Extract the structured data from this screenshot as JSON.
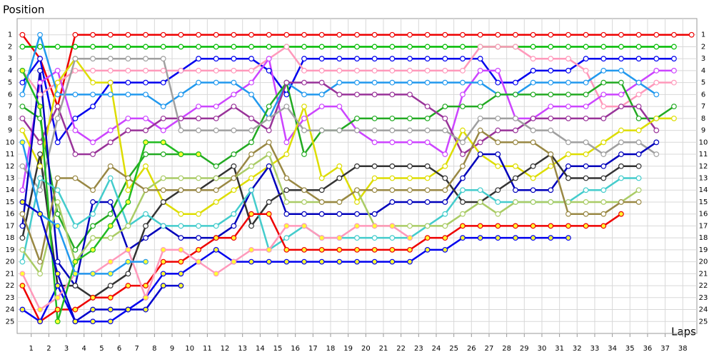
{
  "chart_data": {
    "type": "line",
    "y_label": "Position",
    "x_label": "Laps",
    "x": [
      0,
      1,
      2,
      3,
      4,
      5,
      6,
      7,
      8,
      9,
      10,
      11,
      12,
      13,
      14,
      15,
      16,
      17,
      18,
      19,
      20,
      21,
      22,
      23,
      24,
      25,
      26,
      27,
      28,
      29,
      30,
      31,
      32,
      33,
      34,
      35,
      36,
      37,
      38
    ],
    "xlim": [
      -0.3,
      38.3
    ],
    "xticks": [
      {
        "value": 0.5,
        "label": "1"
      },
      {
        "value": 1.5,
        "label": "2"
      },
      {
        "value": 2.5,
        "label": "3"
      },
      {
        "value": 3.5,
        "label": "4"
      },
      {
        "value": 4.5,
        "label": "5"
      },
      {
        "value": 5.5,
        "label": "6"
      },
      {
        "value": 6.5,
        "label": "7"
      },
      {
        "value": 7.5,
        "label": "8"
      },
      {
        "value": 8.5,
        "label": "9"
      },
      {
        "value": 9.5,
        "label": "10"
      },
      {
        "value": 10.5,
        "label": "11"
      },
      {
        "value": 11.5,
        "label": "12"
      },
      {
        "value": 12.5,
        "label": "13"
      },
      {
        "value": 13.5,
        "label": "14"
      },
      {
        "value": 14.5,
        "label": "15"
      },
      {
        "value": 15.5,
        "label": "16"
      },
      {
        "value": 16.5,
        "label": "17"
      },
      {
        "value": 17.5,
        "label": "18"
      },
      {
        "value": 18.5,
        "label": "19"
      },
      {
        "value": 19.5,
        "label": "20"
      },
      {
        "value": 20.5,
        "label": "21"
      },
      {
        "value": 21.5,
        "label": "22"
      },
      {
        "value": 22.5,
        "label": "23"
      },
      {
        "value": 23.5,
        "label": "24"
      },
      {
        "value": 24.5,
        "label": "25"
      },
      {
        "value": 25.5,
        "label": "26"
      },
      {
        "value": 26.5,
        "label": "27"
      },
      {
        "value": 27.5,
        "label": "28"
      },
      {
        "value": 28.5,
        "label": "29"
      },
      {
        "value": 29.5,
        "label": "30"
      },
      {
        "value": 30.5,
        "label": "31"
      },
      {
        "value": 31.5,
        "label": "32"
      },
      {
        "value": 32.5,
        "label": "33"
      },
      {
        "value": 33.5,
        "label": "34"
      },
      {
        "value": 34.5,
        "label": "35"
      },
      {
        "value": 35.5,
        "label": "36"
      },
      {
        "value": 36.5,
        "label": "37"
      },
      {
        "value": 37.5,
        "label": "38"
      }
    ],
    "ylim": [
      26,
      0
    ],
    "yticks": [
      1,
      2,
      3,
      4,
      5,
      6,
      7,
      8,
      9,
      10,
      11,
      12,
      13,
      14,
      15,
      16,
      17,
      18,
      19,
      20,
      21,
      22,
      23,
      24,
      25
    ],
    "grid": true,
    "series": [
      {
        "color": "#ee0000",
        "marker_fill": "#ffffff",
        "values": [
          1,
          3,
          7,
          1,
          1,
          1,
          1,
          1,
          1,
          1,
          1,
          1,
          1,
          1,
          1,
          1,
          1,
          1,
          1,
          1,
          1,
          1,
          1,
          1,
          1,
          1,
          1,
          1,
          1,
          1,
          1,
          1,
          1,
          1,
          1,
          1,
          1,
          1,
          1
        ]
      },
      {
        "color": "#00bb00",
        "marker_fill": "#ffffff",
        "values": [
          2,
          2,
          2,
          2,
          2,
          2,
          2,
          2,
          2,
          2,
          2,
          2,
          2,
          2,
          2,
          2,
          2,
          2,
          2,
          2,
          2,
          2,
          2,
          2,
          2,
          2,
          2,
          2,
          2,
          2,
          2,
          2,
          2,
          2,
          2,
          2,
          2,
          2,
          null
        ]
      },
      {
        "color": "#0000ee",
        "marker_fill": "#ffffff",
        "values": [
          5,
          3,
          10,
          8,
          7,
          5,
          5,
          5,
          5,
          4,
          3,
          3,
          3,
          3,
          4,
          6,
          3,
          3,
          3,
          3,
          3,
          3,
          3,
          3,
          3,
          3,
          3,
          5,
          5,
          4,
          4,
          4,
          3,
          3,
          3,
          3,
          3,
          3,
          null
        ]
      },
      {
        "color": "#ff99bb",
        "marker_fill": "#ffffff",
        "values": [
          4,
          6,
          5,
          4,
          4,
          4,
          4,
          4,
          4,
          4,
          4,
          4,
          4,
          4,
          3,
          2,
          4,
          4,
          4,
          4,
          4,
          4,
          4,
          4,
          4,
          4,
          2,
          2,
          2,
          3,
          3,
          3,
          4,
          7,
          7,
          6,
          5,
          5,
          null
        ]
      },
      {
        "color": "#cc44ff",
        "marker_fill": "#ffffff",
        "values": [
          14,
          5,
          4,
          9,
          10,
          9,
          8,
          8,
          9,
          8,
          7,
          7,
          6,
          5,
          3,
          10,
          8,
          7,
          7,
          9,
          10,
          10,
          10,
          10,
          11,
          6,
          4,
          4,
          8,
          8,
          7,
          7,
          7,
          6,
          6,
          5,
          4,
          4,
          null
        ]
      },
      {
        "color": "#2299ee",
        "marker_fill": "#ffffff",
        "values": [
          6,
          1,
          6,
          6,
          6,
          6,
          6,
          6,
          7,
          6,
          5,
          5,
          5,
          6,
          8,
          5,
          6,
          6,
          5,
          5,
          5,
          5,
          5,
          5,
          5,
          5,
          5,
          6,
          6,
          5,
          5,
          5,
          5,
          4,
          4,
          5,
          6,
          null,
          null
        ]
      },
      {
        "color": "#22aa22",
        "marker_fill": "#ffffff",
        "values": [
          7,
          8,
          16,
          19,
          17,
          16,
          13,
          11,
          11,
          11,
          11,
          12,
          11,
          10,
          7,
          5,
          11,
          9,
          9,
          8,
          8,
          8,
          8,
          8,
          7,
          7,
          7,
          6,
          6,
          6,
          6,
          6,
          6,
          5,
          5,
          8,
          8,
          7,
          null
        ]
      },
      {
        "color": "#993399",
        "marker_fill": "#ffffff",
        "values": [
          8,
          10,
          7,
          11,
          11,
          10,
          9,
          9,
          8,
          8,
          8,
          8,
          7,
          8,
          9,
          5,
          5,
          5,
          6,
          6,
          6,
          6,
          6,
          7,
          8,
          11,
          10,
          9,
          9,
          8,
          8,
          8,
          8,
          8,
          7,
          7,
          9,
          null,
          null
        ]
      },
      {
        "color": "#dddd00",
        "marker_fill": "#ffffff",
        "values": [
          9,
          12,
          5,
          3,
          5,
          5,
          14,
          12,
          15,
          16,
          16,
          15,
          14,
          13,
          12,
          11,
          7,
          13,
          12,
          15,
          13,
          13,
          13,
          13,
          12,
          9,
          11,
          12,
          12,
          13,
          12,
          11,
          11,
          10,
          9,
          9,
          8,
          8,
          null
        ]
      },
      {
        "color": "#a0a0a0",
        "marker_fill": "#ffffff",
        "values": [
          12,
          14,
          8,
          3,
          3,
          3,
          3,
          3,
          3,
          9,
          9,
          9,
          9,
          9,
          8,
          7,
          9,
          9,
          9,
          9,
          9,
          9,
          9,
          9,
          9,
          10,
          8,
          8,
          8,
          9,
          9,
          10,
          10,
          11,
          10,
          10,
          11,
          null,
          null
        ]
      },
      {
        "color": "#0000bb",
        "marker_fill": "#ffffff",
        "values": [
          17,
          4,
          20,
          22,
          15,
          15,
          19,
          18,
          17,
          18,
          18,
          18,
          17,
          14,
          12,
          16,
          16,
          16,
          16,
          16,
          16,
          15,
          15,
          15,
          15,
          13,
          11,
          11,
          14,
          14,
          14,
          12,
          12,
          12,
          11,
          11,
          10,
          null,
          null
        ]
      },
      {
        "color": "#333333",
        "marker_fill": "#ffffff",
        "values": [
          18,
          11,
          22,
          22,
          23,
          22,
          21,
          17,
          15,
          14,
          14,
          13,
          12,
          17,
          15,
          14,
          14,
          14,
          13,
          12,
          12,
          12,
          12,
          12,
          13,
          15,
          15,
          14,
          13,
          12,
          11,
          13,
          13,
          13,
          12,
          12,
          null,
          null,
          null
        ]
      },
      {
        "color": "#44cccc",
        "marker_fill": "#ffffff",
        "values": [
          20,
          13,
          14,
          17,
          16,
          13,
          17,
          16,
          17,
          17,
          17,
          17,
          16,
          14,
          19,
          18,
          17,
          18,
          18,
          18,
          18,
          18,
          18,
          17,
          16,
          14,
          14,
          15,
          15,
          15,
          15,
          15,
          14,
          14,
          13,
          13,
          null,
          null,
          null
        ]
      },
      {
        "color": "#aacc66",
        "marker_fill": "#ffffff",
        "values": [
          19,
          21,
          15,
          20,
          18,
          18,
          17,
          14,
          13,
          13,
          13,
          13,
          13,
          12,
          11,
          15,
          15,
          15,
          15,
          14,
          17,
          17,
          17,
          17,
          17,
          16,
          15,
          16,
          15,
          15,
          15,
          15,
          15,
          15,
          15,
          14,
          null,
          null,
          null
        ]
      },
      {
        "color": "#998844",
        "marker_fill": "#ffffff",
        "values": [
          16,
          20,
          13,
          13,
          14,
          12,
          13,
          14,
          14,
          14,
          14,
          14,
          13,
          11,
          10,
          13,
          14,
          15,
          15,
          14,
          14,
          14,
          14,
          14,
          14,
          12,
          9,
          10,
          10,
          10,
          11,
          16,
          16,
          16,
          15,
          15,
          null,
          null,
          null
        ]
      },
      {
        "color": "#ee0000",
        "marker_fill": "#ffff33",
        "values": [
          22,
          25,
          24,
          24,
          23,
          23,
          22,
          22,
          20,
          20,
          19,
          18,
          18,
          16,
          16,
          19,
          19,
          19,
          19,
          19,
          19,
          19,
          19,
          18,
          18,
          17,
          17,
          17,
          17,
          17,
          17,
          17,
          17,
          17,
          16,
          null,
          null,
          null,
          null
        ]
      },
      {
        "color": "#0000ee",
        "marker_fill": "#ffff33",
        "values": [
          24,
          25,
          22,
          25,
          25,
          25,
          24,
          23,
          21,
          21,
          20,
          19,
          20,
          20,
          20,
          20,
          20,
          20,
          20,
          20,
          20,
          20,
          20,
          19,
          19,
          18,
          18,
          18,
          18,
          18,
          18,
          18,
          null,
          null,
          null,
          null,
          null,
          null,
          null
        ]
      },
      {
        "color": "#ff99bb",
        "marker_fill": "#ffff33",
        "values": [
          21,
          24,
          23,
          21,
          21,
          20,
          19,
          23,
          19,
          19,
          20,
          21,
          20,
          19,
          19,
          17,
          17,
          18,
          18,
          17,
          17,
          17,
          18,
          null,
          null,
          null,
          null,
          null,
          null,
          null,
          null,
          null,
          null,
          null,
          null,
          null,
          null,
          null,
          null
        ]
      },
      {
        "color": "#22bb22",
        "marker_fill": "#ffff33",
        "values": [
          4,
          7,
          25,
          20,
          19,
          17,
          15,
          10,
          10,
          11,
          11,
          null,
          null,
          null,
          null,
          null,
          null,
          null,
          null,
          null,
          null,
          null,
          null,
          null,
          null,
          null,
          null,
          null,
          null,
          null,
          null,
          null,
          null,
          null,
          null,
          null,
          null,
          null,
          null
        ]
      },
      {
        "color": "#2299ee",
        "marker_fill": "#ffff33",
        "values": [
          10,
          16,
          17,
          21,
          21,
          21,
          20,
          20,
          null,
          null,
          null,
          null,
          null,
          null,
          null,
          null,
          null,
          null,
          null,
          null,
          null,
          null,
          null,
          null,
          null,
          null,
          null,
          null,
          null,
          null,
          null,
          null,
          null,
          null,
          null,
          null,
          null,
          null,
          null
        ]
      },
      {
        "color": "#0000cc",
        "marker_fill": "#ffff33",
        "values": [
          15,
          16,
          21,
          25,
          24,
          24,
          24,
          24,
          22,
          22,
          null,
          null,
          null,
          null,
          null,
          null,
          null,
          null,
          null,
          null,
          null,
          null,
          null,
          null,
          null,
          null,
          null,
          null,
          null,
          null,
          null,
          null,
          null,
          null,
          null,
          null,
          null,
          null,
          null
        ]
      }
    ]
  }
}
